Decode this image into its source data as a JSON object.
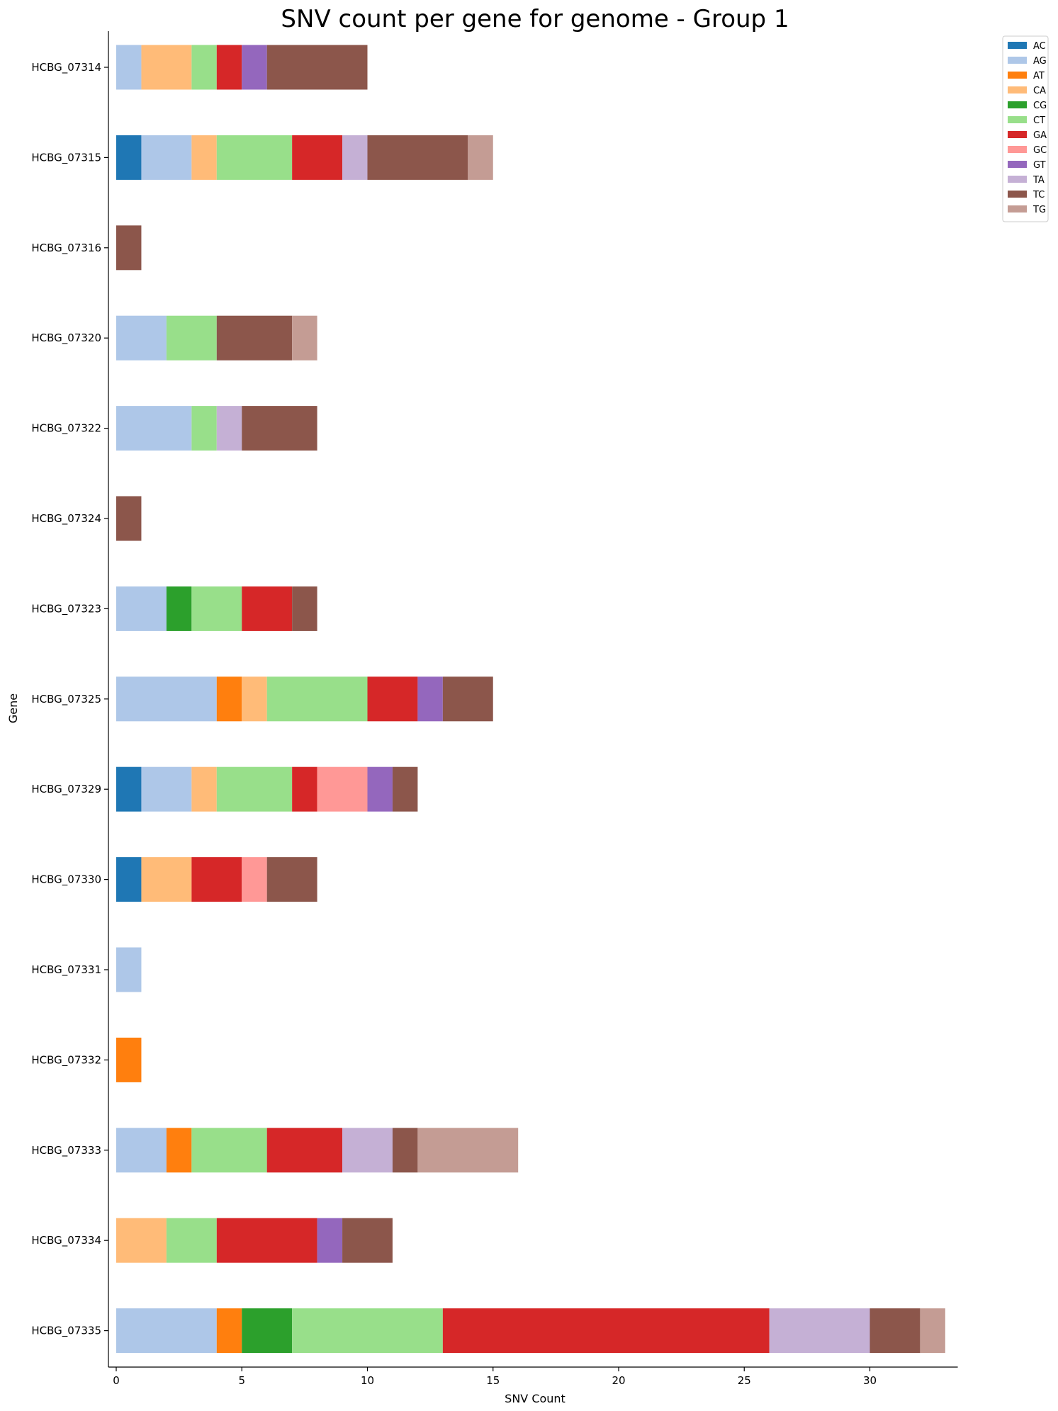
{
  "chart_data": {
    "type": "bar",
    "orientation": "horizontal",
    "stacked": true,
    "title": "SNV count per gene for genome - Group 1",
    "xlabel": "SNV Count",
    "ylabel": "Gene",
    "xlim": [
      0,
      33.5
    ],
    "xticks": [
      0,
      5,
      10,
      15,
      20,
      25,
      30
    ],
    "grid": false,
    "legend_position": "top-right-outside",
    "categories": [
      "HCBG_07314",
      "HCBG_07315",
      "HCBG_07316",
      "HCBG_07320",
      "HCBG_07322",
      "HCBG_07324",
      "HCBG_07323",
      "HCBG_07325",
      "HCBG_07329",
      "HCBG_07330",
      "HCBG_07331",
      "HCBG_07332",
      "HCBG_07333",
      "HCBG_07334",
      "HCBG_07335"
    ],
    "series": [
      {
        "name": "AC",
        "color": "#1f77b4",
        "values": [
          0,
          1,
          0,
          0,
          0,
          0,
          0,
          0,
          1,
          1,
          0,
          0,
          0,
          0,
          0
        ]
      },
      {
        "name": "AG",
        "color": "#aec7e8",
        "values": [
          1,
          2,
          0,
          2,
          3,
          0,
          2,
          4,
          2,
          0,
          1,
          0,
          2,
          0,
          4
        ]
      },
      {
        "name": "AT",
        "color": "#ff7f0e",
        "values": [
          0,
          0,
          0,
          0,
          0,
          0,
          0,
          1,
          0,
          0,
          0,
          1,
          1,
          0,
          1
        ]
      },
      {
        "name": "CA",
        "color": "#ffbb78",
        "values": [
          2,
          1,
          0,
          0,
          0,
          0,
          0,
          1,
          1,
          2,
          0,
          0,
          0,
          2,
          0
        ]
      },
      {
        "name": "CG",
        "color": "#2ca02c",
        "values": [
          0,
          0,
          0,
          0,
          0,
          0,
          1,
          0,
          0,
          0,
          0,
          0,
          0,
          0,
          2
        ]
      },
      {
        "name": "CT",
        "color": "#98df8a",
        "values": [
          1,
          3,
          0,
          2,
          1,
          0,
          2,
          4,
          3,
          0,
          0,
          0,
          3,
          2,
          6
        ]
      },
      {
        "name": "GA",
        "color": "#d62728",
        "values": [
          1,
          2,
          0,
          0,
          0,
          0,
          2,
          2,
          1,
          2,
          0,
          0,
          3,
          4,
          13
        ]
      },
      {
        "name": "GC",
        "color": "#ff9896",
        "values": [
          0,
          0,
          0,
          0,
          0,
          0,
          0,
          0,
          2,
          1,
          0,
          0,
          0,
          0,
          0
        ]
      },
      {
        "name": "GT",
        "color": "#9467bd",
        "values": [
          1,
          0,
          0,
          0,
          0,
          0,
          0,
          1,
          1,
          0,
          0,
          0,
          0,
          1,
          0
        ]
      },
      {
        "name": "TA",
        "color": "#c5b0d5",
        "values": [
          0,
          1,
          0,
          0,
          1,
          0,
          0,
          0,
          0,
          0,
          0,
          0,
          2,
          0,
          4
        ]
      },
      {
        "name": "TC",
        "color": "#8c564b",
        "values": [
          4,
          4,
          1,
          3,
          3,
          1,
          1,
          2,
          1,
          2,
          0,
          0,
          1,
          2,
          2
        ]
      },
      {
        "name": "TG",
        "color": "#c49c94",
        "values": [
          0,
          1,
          0,
          1,
          0,
          0,
          0,
          0,
          0,
          0,
          0,
          0,
          4,
          0,
          1
        ]
      }
    ]
  }
}
